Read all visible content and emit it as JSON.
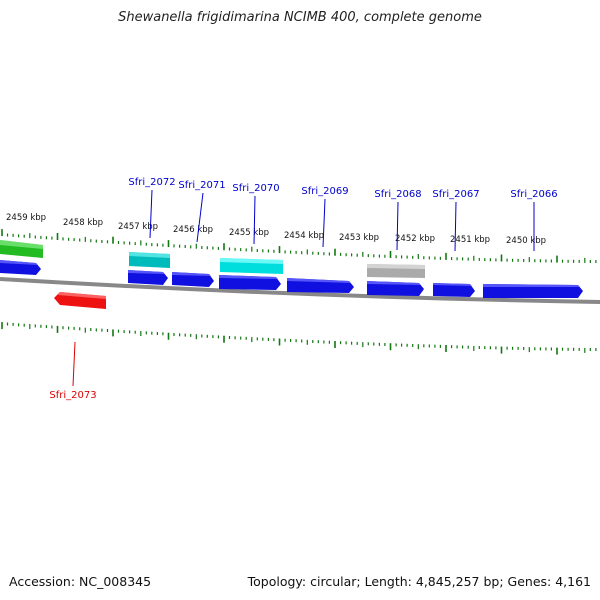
{
  "title": "Shewanella frigidimarina NCIMB 400, complete genome",
  "footer": {
    "accession": "Accession: NC_008345",
    "summary": "Topology: circular; Length: 4,845,257 bp; Genes: 4,161"
  },
  "kbp_labels": [
    "2459 kbp",
    "2458 kbp",
    "2457 kbp",
    "2456 kbp",
    "2455 kbp",
    "2454 kbp",
    "2453 kbp",
    "2452 kbp",
    "2451 kbp",
    "2450 kbp"
  ],
  "gene_labels": [
    {
      "name": "Sfri_2073",
      "color": "#dd0000"
    },
    {
      "name": "Sfri_2072",
      "color": "#0000cc"
    },
    {
      "name": "Sfri_2071",
      "color": "#0000cc"
    },
    {
      "name": "Sfri_2070",
      "color": "#0000cc"
    },
    {
      "name": "Sfri_2069",
      "color": "#0000cc"
    },
    {
      "name": "Sfri_2068",
      "color": "#0000cc"
    },
    {
      "name": "Sfri_2067",
      "color": "#0000cc"
    },
    {
      "name": "Sfri_2066",
      "color": "#0000cc"
    }
  ],
  "colors": {
    "cds_forward": "#1010e0",
    "cds_reverse": "#ee1111",
    "rna_cyan": "#00cccc",
    "green": "#22bb22",
    "gray": "#aaaaaa",
    "tick": "#117711",
    "backbone": "#888888"
  }
}
